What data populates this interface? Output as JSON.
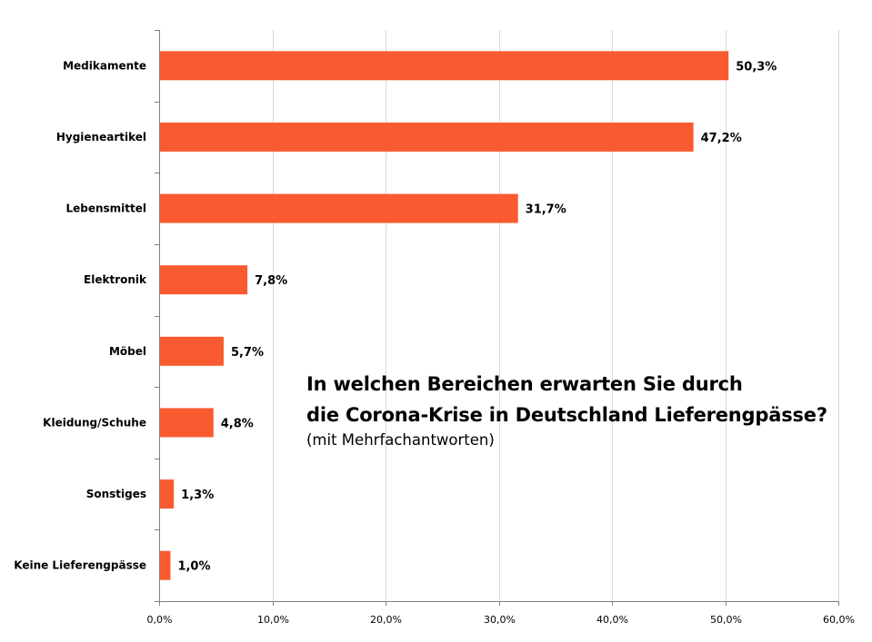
{
  "chart_data": {
    "type": "bar",
    "orientation": "horizontal",
    "title_lines": [
      "In welchen Bereichen erwarten Sie durch",
      "die Corona-Krise in Deutschland Lieferengpässe?"
    ],
    "subtitle": "(mit Mehrfachantworten)",
    "categories": [
      "Medikamente",
      "Hygieneartikel",
      "Lebensmittel",
      "Elektronik",
      "Möbel",
      "Kleidung/Schuhe",
      "Sonstiges",
      "Keine Lieferengpässe"
    ],
    "values": [
      50.3,
      47.2,
      31.7,
      7.8,
      5.7,
      4.8,
      1.3,
      1.0
    ],
    "value_labels": [
      "50,3%",
      "47,2%",
      "31,7%",
      "7,8%",
      "5,7%",
      "4,8%",
      "1,3%",
      "1,0%"
    ],
    "xlim": [
      0,
      60
    ],
    "x_ticks": [
      0,
      10,
      20,
      30,
      40,
      50,
      60
    ],
    "x_tick_labels": [
      "0,0%",
      "10,0%",
      "20,0%",
      "30,0%",
      "40,0%",
      "50,0%",
      "60,0%"
    ],
    "grid": "vertical",
    "legend": "none",
    "bar_color": "#F95A30",
    "grid_color": "#D9D9D9",
    "axis_color": "#808080"
  }
}
